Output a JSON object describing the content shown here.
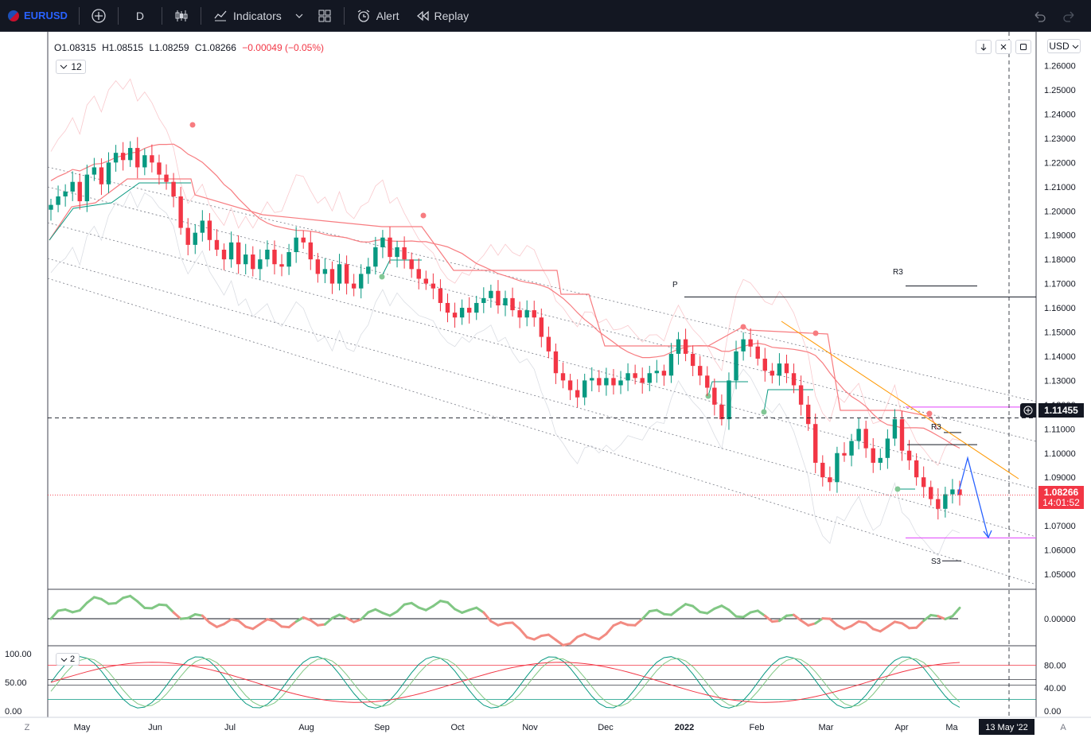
{
  "toolbar": {
    "symbol": "EURUSD",
    "interval": "D",
    "indicators_label": "Indicators",
    "alert_label": "Alert",
    "replay_label": "Replay"
  },
  "legend": {
    "open": "O1.08315",
    "high": "H1.08515",
    "low": "L1.08259",
    "close": "C1.08266",
    "change": "−0.00049 (−0.05%)",
    "indicator_count": "12",
    "osc_param": "2"
  },
  "price_axis": {
    "currency": "USD",
    "ticks": [
      "1.26000",
      "1.25000",
      "1.24000",
      "1.23000",
      "1.22000",
      "1.21000",
      "1.20000",
      "1.19000",
      "1.18000",
      "1.17000",
      "1.16000",
      "1.15000",
      "1.14000",
      "1.13000",
      "1.12000",
      "1.11000",
      "1.10000",
      "1.09000",
      "1.08000",
      "1.07000",
      "1.06000",
      "1.05000"
    ],
    "osc_tick": "0.00000",
    "stoch_ticks": [
      "80.00",
      "40.00",
      "0.00"
    ],
    "stoch_left_ticks": [
      "100.00",
      "50.00",
      "0.00"
    ],
    "crosshair_price": "1.11455",
    "last_price": "1.08266",
    "countdown": "14:01:52"
  },
  "time_axis": {
    "labels": [
      "May",
      "Jun",
      "Jul",
      "Aug",
      "Sep",
      "Oct",
      "Nov",
      "Dec",
      "2022",
      "Feb",
      "Mar",
      "Apr",
      "Ma"
    ],
    "crosshair_date": "13 May '22",
    "left_btn": "Z",
    "right_btn": "A"
  },
  "annotations": {
    "pivot": "P",
    "r3_upper": "R3",
    "r3_lower": "R3",
    "s3": "S3"
  },
  "colors": {
    "up": "#089981",
    "down": "#f23645",
    "accent": "#2962ff"
  },
  "chart_data": {
    "type": "candlestick",
    "symbol": "EURUSD",
    "interval": "D",
    "ylim": [
      1.045,
      1.262
    ],
    "close_series": [
      1.2025,
      1.206,
      1.208,
      1.212,
      1.204,
      1.215,
      1.218,
      1.211,
      1.22,
      1.224,
      1.221,
      1.226,
      1.218,
      1.223,
      1.22,
      1.215,
      1.212,
      1.206,
      1.193,
      1.186,
      1.191,
      1.196,
      1.188,
      1.184,
      1.18,
      1.187,
      1.178,
      1.182,
      1.176,
      1.18,
      1.184,
      1.178,
      1.177,
      1.183,
      1.189,
      1.187,
      1.18,
      1.174,
      1.176,
      1.17,
      1.178,
      1.17,
      1.168,
      1.174,
      1.177,
      1.185,
      1.189,
      1.181,
      1.185,
      1.18,
      1.176,
      1.172,
      1.17,
      1.168,
      1.162,
      1.158,
      1.156,
      1.16,
      1.158,
      1.162,
      1.164,
      1.167,
      1.161,
      1.164,
      1.159,
      1.156,
      1.159,
      1.156,
      1.148,
      1.142,
      1.133,
      1.13,
      1.126,
      1.123,
      1.13,
      1.131,
      1.128,
      1.131,
      1.128,
      1.13,
      1.133,
      1.131,
      1.129,
      1.133,
      1.134,
      1.132,
      1.141,
      1.147,
      1.141,
      1.136,
      1.132,
      1.127,
      1.12,
      1.114,
      1.13,
      1.142,
      1.147,
      1.144,
      1.139,
      1.134,
      1.132,
      1.137,
      1.133,
      1.128,
      1.12,
      1.112,
      1.096,
      1.09,
      1.088,
      1.1,
      1.099,
      1.105,
      1.11,
      1.102,
      1.096,
      1.098,
      1.106,
      1.114,
      1.101,
      1.097,
      1.09,
      1.086,
      1.081,
      1.077,
      1.083,
      1.085,
      1.08266
    ],
    "projection_path": [
      [
        1.083
      ],
      [
        1.098
      ],
      [
        1.065
      ]
    ],
    "levels": {
      "pivot_P": 1.1645,
      "R3_upper": 1.169,
      "R3_lower": 1.1035,
      "S3": 1.0555,
      "magenta_top": 1.119,
      "magenta_bottom": 1.065,
      "crosshair": 1.11455,
      "last": 1.08266
    },
    "oscillator_panel": {
      "zero_line": 0
    },
    "stochastic_panel": {
      "levels": [
        80,
        50,
        20
      ],
      "ylim": [
        0,
        100
      ]
    },
    "grid": true
  }
}
